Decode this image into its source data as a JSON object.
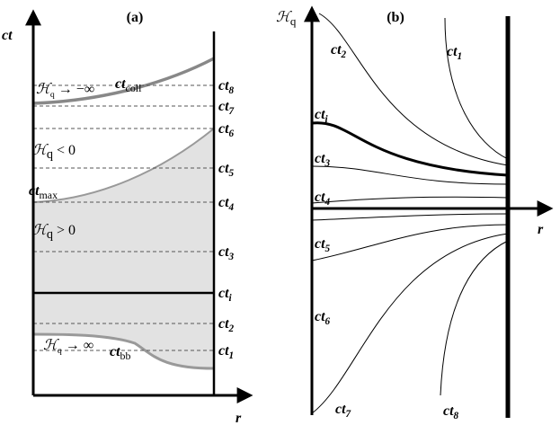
{
  "panel_a": {
    "title": "(a)",
    "y_axis": "ct",
    "x_axis": "r",
    "time_labels": [
      {
        "base": "ct",
        "sub": "8"
      },
      {
        "base": "ct",
        "sub": "7"
      },
      {
        "base": "ct",
        "sub": "6"
      },
      {
        "base": "ct",
        "sub": "5"
      },
      {
        "base": "ct",
        "sub": "4"
      },
      {
        "base": "ct",
        "sub": "3"
      },
      {
        "base": "ct",
        "sub": "i"
      },
      {
        "base": "ct",
        "sub": "2"
      },
      {
        "base": "ct",
        "sub": "1"
      }
    ],
    "curve_labels": [
      {
        "base": "ct",
        "sub": "coll"
      },
      {
        "base": "ct",
        "sub": "max"
      },
      {
        "base": "ct",
        "sub": "bb"
      }
    ],
    "region_labels": [
      {
        "symbol": "ℋ",
        "sub": "q",
        "text": " → −∞"
      },
      {
        "symbol": "ℋ",
        "sub": "q",
        "text": " < 0"
      },
      {
        "symbol": "ℋ",
        "sub": "q",
        "text": " > 0"
      },
      {
        "symbol": "ℋ",
        "sub": "q",
        "text": " → ∞"
      }
    ]
  },
  "panel_b": {
    "title": "(b)",
    "y_axis": {
      "symbol": "ℋ",
      "sub": "q"
    },
    "x_axis": "r",
    "curve_labels": [
      {
        "base": "ct",
        "sub": "2"
      },
      {
        "base": "ct",
        "sub": "1"
      },
      {
        "base": "ct",
        "sub": "i"
      },
      {
        "base": "ct",
        "sub": "3"
      },
      {
        "base": "ct",
        "sub": "4"
      },
      {
        "base": "ct",
        "sub": "5"
      },
      {
        "base": "ct",
        "sub": "6"
      },
      {
        "base": "ct",
        "sub": "7"
      },
      {
        "base": "ct",
        "sub": "8"
      }
    ]
  }
}
